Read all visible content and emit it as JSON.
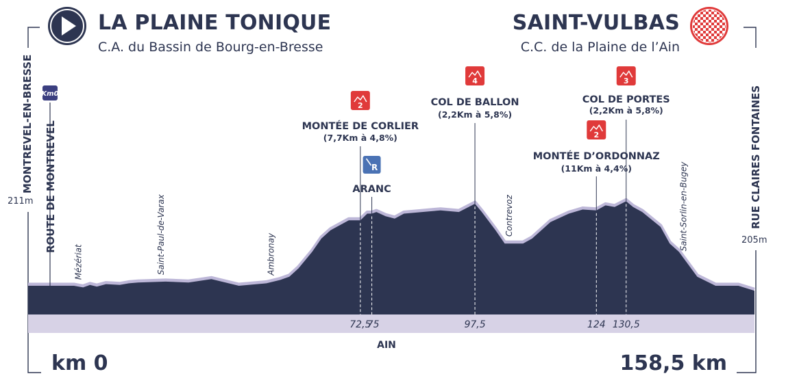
{
  "start": {
    "city": "LA PLAINE TONIQUE",
    "area": "C.A. du Bassin de Bourg-en-Bresse",
    "km_label": "km 0",
    "altitude_label": "211m",
    "vertical_label": "MONTREVEL-EN-BRESSE",
    "route_label": "ROUTE DE MONTREVEL",
    "km0_badge": "Km0"
  },
  "finish": {
    "city": "SAINT-VULBAS",
    "area": "C.C. de la Plaine de l’Ain",
    "km_label": "158,5 km",
    "altitude_label": "205m",
    "vertical_label": "RUE CLAIRES FONTAINES"
  },
  "department_label": "AIN",
  "colors": {
    "profile": "#2d3551",
    "profile_edge": "#bdb7d8",
    "band": "#d7d2e6",
    "climb_icon": "#e03a3a",
    "sprint_icon": "#4a72b4",
    "text": "#2d3551"
  },
  "chart_data": {
    "type": "area",
    "title": "",
    "xlabel": "",
    "ylabel": "",
    "x_unit": "km",
    "xlim": [
      0,
      158.5
    ],
    "y_unit": "m",
    "profile": {
      "x": [
        0,
        10,
        12,
        13.5,
        15,
        17,
        20,
        22,
        24,
        30,
        35,
        40,
        46,
        52,
        55,
        57,
        59,
        62,
        64,
        66,
        70,
        72.5,
        74,
        75,
        76,
        78,
        80,
        82,
        86,
        90,
        94,
        97.5,
        99,
        102,
        104,
        108,
        110,
        114,
        118,
        121,
        124,
        126,
        128,
        130.5,
        132,
        134,
        138,
        140,
        142,
        146,
        150,
        155,
        158.5
      ],
      "y": [
        211,
        211,
        209,
        212,
        210,
        213,
        212,
        214,
        215,
        216,
        215,
        219,
        211,
        214,
        218,
        222,
        232,
        252,
        268,
        278,
        290,
        290,
        298,
        298,
        300,
        295,
        292,
        298,
        300,
        302,
        300,
        310,
        300,
        278,
        262,
        262,
        268,
        288,
        298,
        303,
        302,
        308,
        306,
        313,
        306,
        300,
        282,
        262,
        252,
        222,
        211,
        211,
        205
      ]
    },
    "localities": [
      {
        "km": 11,
        "name": "Mézériat"
      },
      {
        "km": 29,
        "name": "Saint-Paul-de-Varax"
      },
      {
        "km": 53,
        "name": "Ambronay"
      },
      {
        "km": 105,
        "name": "Contrevoz"
      },
      {
        "km": 143,
        "name": "Saint-Sorlin-en-Bugey"
      }
    ],
    "climbs": [
      {
        "km": 72.5,
        "km_label": "72,5",
        "category": "2",
        "name": "MONTÉE DE CORLIER",
        "details": "(7,7Km à 4,8%)"
      },
      {
        "km": 97.5,
        "km_label": "97,5",
        "category": "4",
        "name": "COL DE BALLON",
        "details": "(2,2Km à 5,8%)"
      },
      {
        "km": 124,
        "km_label": "124",
        "category": "2",
        "name": "MONTÉE D’ORDONNAZ",
        "details": "(11Km à 4,4%)"
      },
      {
        "km": 130.5,
        "km_label": "130,5",
        "category": "3",
        "name": "COL DE PORTES",
        "details": "(2,2Km à 5,8%)"
      }
    ],
    "sprints": [
      {
        "km": 75,
        "km_label": "75",
        "name": "ARANC",
        "badge": "R"
      }
    ]
  }
}
